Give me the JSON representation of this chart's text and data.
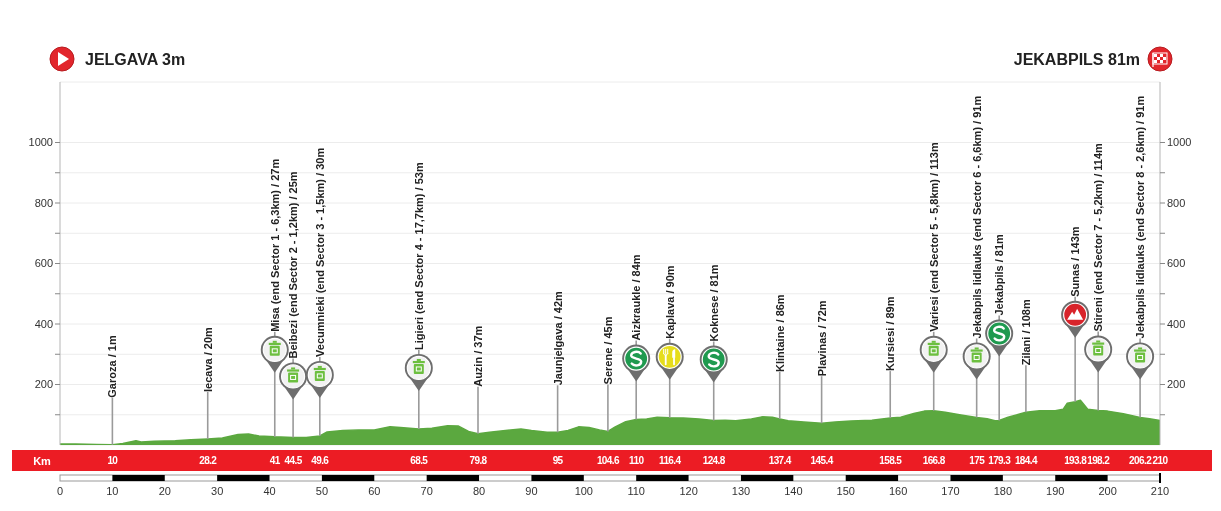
{
  "chart_data": {
    "type": "area",
    "annotations": [
      "JELGAVA 3m",
      "JEKABPILS 81m",
      {
        "text": "Garoza / 1m",
        "x": 10,
        "y": 1
      },
      {
        "text": "Iecava / 20m",
        "x": 28.2,
        "y": 20
      },
      {
        "text": "Misa (end Sector 1 - 6,3km) / 27m",
        "x": 41,
        "y": 27
      },
      {
        "text": "Beibezi (end Sector 2 - 1,2km) / 25m",
        "x": 44.5,
        "y": 25
      },
      {
        "text": "Vecumnieki (end Sector 3 - 1,5km) / 30m",
        "x": 49.6,
        "y": 30
      },
      {
        "text": "Ligieri (end Sector 4 - 17,7km) / 53m",
        "x": 68.5,
        "y": 53
      },
      {
        "text": "Auzin / 37m",
        "x": 79.8,
        "y": 37
      },
      {
        "text": "Jaunjelgava / 42m",
        "x": 95,
        "y": 42
      },
      {
        "text": "Serene / 45m",
        "x": 104.6,
        "y": 45
      },
      {
        "text": "Aizkraukle / 84m",
        "x": 110,
        "y": 84
      },
      {
        "text": "Kaplava / 90m",
        "x": 116.4,
        "y": 90
      },
      {
        "text": "Koknese / 81m",
        "x": 124.8,
        "y": 81
      },
      {
        "text": "Klintaine / 86m",
        "x": 137.4,
        "y": 86
      },
      {
        "text": "Plavinas / 72m",
        "x": 145.4,
        "y": 72
      },
      {
        "text": "Kursiesi / 89m",
        "x": 158.5,
        "y": 89
      },
      {
        "text": "Variesi (end Sector 5 - 5,8km) / 113m",
        "x": 166.8,
        "y": 113
      },
      {
        "text": "Jekabpils lidlauks (end Sector 6 - 6,6km) / 91m",
        "x": 175,
        "y": 91
      },
      {
        "text": "Jekabpils / 81m",
        "x": 179.3,
        "y": 81
      },
      {
        "text": "Zilani / 108m",
        "x": 184.4,
        "y": 108
      },
      {
        "text": "Sunas / 143m",
        "x": 193.8,
        "y": 143
      },
      {
        "text": "Stireni (end Sector 7 - 5,2km) / 114m",
        "x": 198.2,
        "y": 114
      },
      {
        "text": "Jekabpils lidlauks (end Sector 8 - 2,6km) / 91m",
        "x": 206.2,
        "y": 91
      }
    ],
    "x": [
      0,
      3,
      7,
      10,
      12,
      14.5,
      15.5,
      18,
      22,
      25,
      28.2,
      31,
      34,
      36,
      38,
      41,
      44.5,
      47,
      49.6,
      51,
      54,
      57,
      60,
      63,
      65,
      68.5,
      71,
      74,
      76,
      78,
      79.8,
      82,
      86,
      88,
      90,
      93,
      95,
      97,
      99,
      101,
      103,
      104.6,
      106,
      108,
      110,
      112,
      114,
      116.4,
      119,
      122,
      124.8,
      127,
      129,
      132,
      134,
      136,
      137.4,
      139,
      142,
      145.4,
      148,
      151,
      155,
      158.5,
      160.5,
      163,
      165,
      166.8,
      169,
      172,
      175,
      177,
      178.5,
      179.3,
      181,
      184.4,
      187,
      190,
      191.5,
      192.3,
      193.8,
      194.8,
      196.2,
      198.2,
      200,
      203,
      206.2,
      208,
      210
    ],
    "values": [
      3,
      3,
      2,
      1,
      5,
      14,
      10,
      12,
      14,
      17,
      20,
      23,
      35,
      36,
      30,
      27,
      25,
      25,
      30,
      43,
      48,
      50,
      50,
      60,
      58,
      53,
      55,
      64,
      63,
      45,
      37,
      42,
      50,
      53,
      48,
      42,
      42,
      48,
      60,
      58,
      50,
      45,
      60,
      77,
      84,
      86,
      92,
      90,
      89,
      86,
      81,
      82,
      80,
      86,
      93,
      92,
      86,
      80,
      76,
      72,
      76,
      79,
      82,
      89,
      92,
      104,
      112,
      113,
      108,
      99,
      91,
      87,
      80,
      81,
      92,
      108,
      113,
      113,
      118,
      138,
      143,
      148,
      118,
      114,
      112,
      103,
      91,
      87,
      81
    ],
    "color": "#5ba83f",
    "xlim": [
      0,
      210
    ],
    "xticks": [
      0,
      10,
      20,
      30,
      40,
      50,
      60,
      70,
      80,
      90,
      100,
      110,
      120,
      130,
      140,
      150,
      160,
      170,
      180,
      190,
      200,
      210
    ],
    "x2lim": [
      0,
      210
    ],
    "x2ticks": [
      10,
      28.2,
      41,
      44.5,
      49.6,
      68.5,
      79.8,
      95,
      104.6,
      110,
      116.4,
      124.8,
      137.4,
      145.4,
      158.5,
      166.8,
      175,
      179.3,
      184.4,
      193.8,
      198.2,
      206.2,
      210
    ],
    "x2label": "Km",
    "ylim": [
      0,
      1200
    ],
    "yticks": [
      {
        "value": 100,
        "label": null
      },
      200,
      {
        "value": 300,
        "label": null
      },
      400,
      {
        "value": 500,
        "label": null
      },
      600,
      {
        "value": 700,
        "label": null
      },
      800,
      {
        "value": 900,
        "label": null
      },
      1000
    ],
    "y2lim": [
      0,
      1200
    ],
    "y2ticks": [
      {
        "value": 100,
        "label": null
      },
      200,
      {
        "value": 300,
        "label": null
      },
      400,
      {
        "value": 500,
        "label": null
      },
      600,
      {
        "value": 700,
        "label": null
      },
      800,
      {
        "value": 900,
        "label": null
      },
      1000
    ],
    "grid": "y"
  }
}
